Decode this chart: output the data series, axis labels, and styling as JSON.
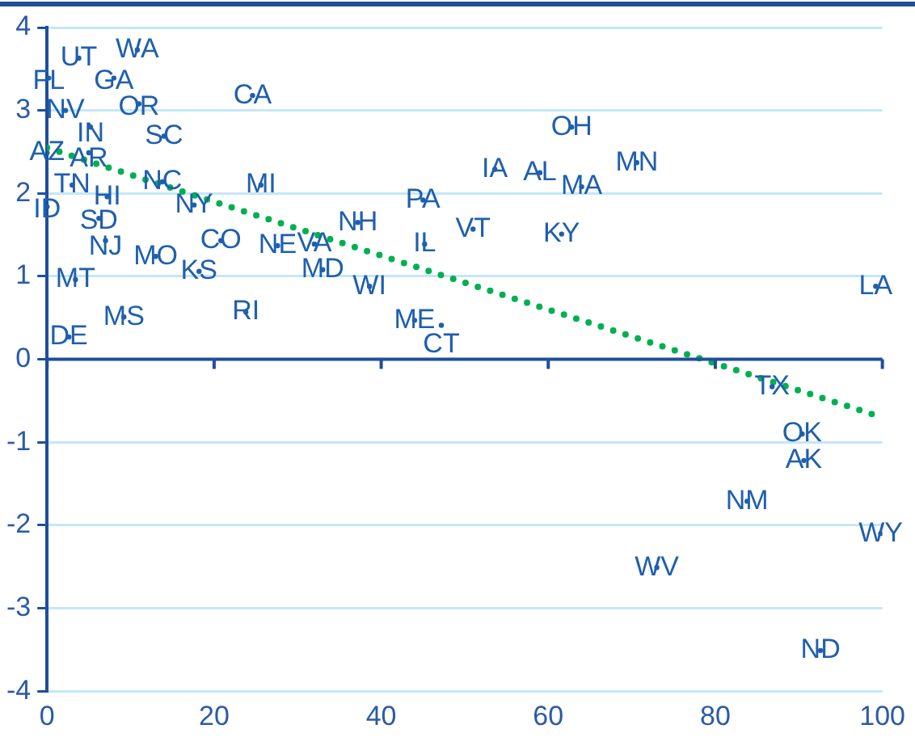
{
  "chart_data": {
    "type": "scatter",
    "xlim": [
      0,
      100
    ],
    "xticks": [
      0,
      20,
      40,
      60,
      80,
      100
    ],
    "ylim": [
      -4,
      4
    ],
    "yticks": [
      -4,
      -3,
      -2,
      -1,
      0,
      1,
      2,
      3,
      4
    ],
    "grid": "y",
    "legend": false,
    "marker": "circle",
    "ref_lines": [
      {
        "axis": "y",
        "value": 0,
        "color": "#1f4e9c"
      }
    ],
    "series": [
      {
        "type": "scatter",
        "color": "#1f5fae",
        "x": [
          3.8,
          10.8,
          0.2,
          8,
          2.2,
          11,
          5.2,
          14,
          24.6,
          0,
          5,
          3,
          13.8,
          7.2,
          0,
          17.6,
          25.6,
          6.2,
          7,
          20.8,
          27.6,
          32,
          13,
          18.2,
          33,
          38.6,
          37.2,
          3.4,
          23.8,
          9.2,
          2.6,
          44,
          47.2,
          45,
          45.2,
          51,
          53.6,
          59,
          64,
          62.8,
          70.6,
          61.6,
          99.2,
          86.8,
          90.4,
          90.6,
          83.8,
          99.8,
          73,
          92.6
        ],
        "values": [
          3.63,
          3.73,
          3.39,
          3.39,
          3.0,
          3.08,
          2.8,
          2.69,
          3.18,
          2.49,
          2.49,
          2.1,
          2.14,
          1.96,
          1.84,
          1.86,
          2.1,
          1.7,
          1.43,
          1.43,
          1.37,
          1.39,
          1.24,
          1.06,
          1.08,
          0.88,
          1.65,
          0.96,
          0.57,
          0.51,
          0.27,
          0.47,
          0.41,
          1.92,
          1.39,
          1.57,
          2.29,
          2.25,
          2.08,
          2.8,
          2.37,
          1.51,
          0.88,
          -0.33,
          -0.9,
          -1.22,
          -1.71,
          -2.1,
          -2.51,
          -3.51
        ],
        "value_labels": [
          "UT",
          "WA",
          "FL",
          "GA",
          "NV",
          "OR",
          "IN",
          "SC",
          "CA",
          "AZ",
          "AR",
          "TN",
          "NC",
          "HI",
          "ID",
          "NY",
          "MI",
          "SD",
          "NJ",
          "CO",
          "NE",
          "VA",
          "MO",
          "KS",
          "MD",
          "WI",
          "NH",
          "MT",
          "RI",
          "MS",
          "DE",
          "ME",
          "CT",
          "PA",
          "IL",
          "VT",
          "IA",
          "AL",
          "MA",
          "OH",
          "MN",
          "KY",
          "LA",
          "TX",
          "OK",
          "AK",
          "NM",
          "WY",
          "WV",
          "ND"
        ]
      },
      {
        "type": "line",
        "marker": "none",
        "color": "#00b050",
        "line_style": "dotted",
        "x": [
          0,
          100
        ],
        "values": [
          2.55,
          -0.7
        ]
      }
    ]
  }
}
